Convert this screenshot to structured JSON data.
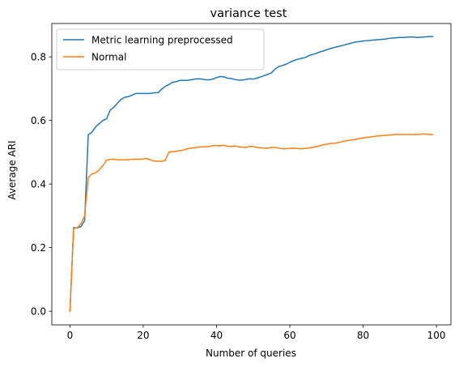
{
  "chart_data": {
    "type": "line",
    "title": "variance test",
    "xlabel": "Number of queries",
    "ylabel": "Average ARI",
    "xlim": [
      -4.95,
      103.95
    ],
    "ylim": [
      -0.043,
      0.905
    ],
    "xticks": [
      0,
      20,
      40,
      60,
      80,
      100
    ],
    "xtick_labels": [
      "0",
      "20",
      "40",
      "60",
      "80",
      "100"
    ],
    "yticks": [
      0.0,
      0.2,
      0.4,
      0.6,
      0.8
    ],
    "ytick_labels": [
      "0.0",
      "0.2",
      "0.4",
      "0.6",
      "0.8"
    ],
    "grid": false,
    "legend_position": "upper-left",
    "x_start": 0,
    "x_step": 1,
    "series": [
      {
        "name": "Metric learning preprocessed",
        "color": "#1f77b4",
        "values": [
          0.0,
          0.263,
          0.262,
          0.266,
          0.285,
          0.555,
          0.563,
          0.58,
          0.59,
          0.6,
          0.605,
          0.633,
          0.642,
          0.655,
          0.667,
          0.673,
          0.675,
          0.68,
          0.685,
          0.685,
          0.685,
          0.685,
          0.685,
          0.687,
          0.687,
          0.698,
          0.707,
          0.713,
          0.72,
          0.722,
          0.726,
          0.726,
          0.726,
          0.728,
          0.73,
          0.731,
          0.73,
          0.728,
          0.728,
          0.73,
          0.735,
          0.738,
          0.737,
          0.733,
          0.732,
          0.729,
          0.727,
          0.727,
          0.729,
          0.731,
          0.73,
          0.733,
          0.737,
          0.741,
          0.745,
          0.75,
          0.762,
          0.77,
          0.773,
          0.777,
          0.783,
          0.788,
          0.792,
          0.795,
          0.797,
          0.803,
          0.807,
          0.81,
          0.815,
          0.818,
          0.822,
          0.826,
          0.829,
          0.832,
          0.835,
          0.838,
          0.841,
          0.844,
          0.847,
          0.848,
          0.85,
          0.851,
          0.852,
          0.853,
          0.854,
          0.855,
          0.856,
          0.858,
          0.859,
          0.86,
          0.861,
          0.861,
          0.862,
          0.863,
          0.862,
          0.861,
          0.862,
          0.863,
          0.864,
          0.864
        ]
      },
      {
        "name": "Normal",
        "color": "#ff7f0e",
        "values": [
          0.0,
          0.26,
          0.263,
          0.275,
          0.3,
          0.42,
          0.432,
          0.435,
          0.445,
          0.458,
          0.475,
          0.478,
          0.478,
          0.476,
          0.476,
          0.476,
          0.477,
          0.478,
          0.478,
          0.478,
          0.479,
          0.48,
          0.476,
          0.472,
          0.472,
          0.471,
          0.475,
          0.5,
          0.502,
          0.503,
          0.505,
          0.507,
          0.511,
          0.513,
          0.514,
          0.516,
          0.517,
          0.517,
          0.518,
          0.521,
          0.521,
          0.52,
          0.522,
          0.519,
          0.518,
          0.52,
          0.517,
          0.516,
          0.515,
          0.519,
          0.518,
          0.515,
          0.514,
          0.513,
          0.513,
          0.515,
          0.515,
          0.513,
          0.511,
          0.511,
          0.512,
          0.513,
          0.512,
          0.511,
          0.512,
          0.513,
          0.515,
          0.517,
          0.52,
          0.523,
          0.525,
          0.528,
          0.528,
          0.53,
          0.533,
          0.535,
          0.537,
          0.539,
          0.541,
          0.543,
          0.545,
          0.547,
          0.548,
          0.55,
          0.551,
          0.552,
          0.553,
          0.554,
          0.555,
          0.556,
          0.556,
          0.556,
          0.556,
          0.556,
          0.556,
          0.556,
          0.557,
          0.557,
          0.556,
          0.556
        ]
      }
    ]
  }
}
